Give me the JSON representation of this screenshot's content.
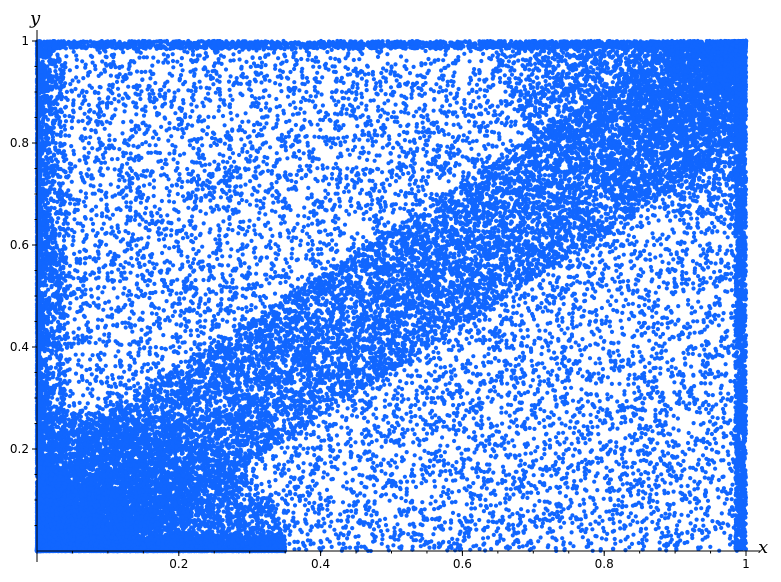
{
  "chart_data": {
    "type": "scatter",
    "title": "",
    "xlabel": "x",
    "ylabel": "y",
    "xlim": [
      0,
      1.0
    ],
    "ylim": [
      0,
      1.0
    ],
    "grid": false,
    "legend": "none",
    "x_ticks": [
      {
        "value": 0.2,
        "label": "0.2"
      },
      {
        "value": 0.4,
        "label": "0.4"
      },
      {
        "value": 0.6,
        "label": "0.6"
      },
      {
        "value": 0.8,
        "label": "0.8"
      },
      {
        "value": 1.0,
        "label": "1"
      }
    ],
    "y_ticks": [
      {
        "value": 0.2,
        "label": "0.2"
      },
      {
        "value": 0.4,
        "label": "0.4"
      },
      {
        "value": 0.6,
        "label": "0.6"
      },
      {
        "value": 0.8,
        "label": "0.8"
      },
      {
        "value": 1.0,
        "label": "1"
      }
    ],
    "series": [
      {
        "marker_color": "#1166ff",
        "description_of_distribution": "",
        "points": [
          [
            0.01,
            0.02
          ],
          [
            0.02,
            0.05
          ],
          [
            0.03,
            0.08
          ],
          [
            0.04,
            0.03
          ],
          [
            0.05,
            0.12
          ],
          [
            0.06,
            0.07
          ],
          [
            0.07,
            0.15
          ],
          [
            0.08,
            0.04
          ],
          [
            0.09,
            0.18
          ],
          [
            0.1,
            0.1
          ],
          [
            0.11,
            0.22
          ],
          [
            0.12,
            0.06
          ],
          [
            0.13,
            0.14
          ],
          [
            0.14,
            0.25
          ],
          [
            0.15,
            0.09
          ],
          [
            0.16,
            0.2
          ],
          [
            0.17,
            0.3
          ],
          [
            0.18,
            0.12
          ],
          [
            0.19,
            0.24
          ],
          [
            0.2,
            0.34
          ],
          [
            0.21,
            0.16
          ],
          [
            0.22,
            0.28
          ],
          [
            0.23,
            0.38
          ],
          [
            0.24,
            0.2
          ],
          [
            0.25,
            0.32
          ],
          [
            0.26,
            0.42
          ],
          [
            0.27,
            0.24
          ],
          [
            0.28,
            0.36
          ],
          [
            0.29,
            0.46
          ],
          [
            0.3,
            0.28
          ],
          [
            0.31,
            0.4
          ],
          [
            0.32,
            0.5
          ],
          [
            0.33,
            0.32
          ],
          [
            0.34,
            0.44
          ],
          [
            0.35,
            0.54
          ],
          [
            0.36,
            0.36
          ],
          [
            0.37,
            0.48
          ],
          [
            0.38,
            0.58
          ],
          [
            0.39,
            0.4
          ],
          [
            0.4,
            0.52
          ],
          [
            0.41,
            0.62
          ],
          [
            0.42,
            0.44
          ],
          [
            0.43,
            0.56
          ],
          [
            0.44,
            0.66
          ],
          [
            0.45,
            0.48
          ],
          [
            0.46,
            0.6
          ],
          [
            0.47,
            0.7
          ],
          [
            0.48,
            0.52
          ],
          [
            0.49,
            0.64
          ],
          [
            0.5,
            0.74
          ],
          [
            0.51,
            0.56
          ],
          [
            0.52,
            0.68
          ],
          [
            0.53,
            0.78
          ],
          [
            0.54,
            0.6
          ],
          [
            0.55,
            0.72
          ],
          [
            0.56,
            0.82
          ],
          [
            0.57,
            0.64
          ],
          [
            0.58,
            0.76
          ],
          [
            0.59,
            0.86
          ],
          [
            0.6,
            0.68
          ],
          [
            0.61,
            0.8
          ],
          [
            0.62,
            0.9
          ],
          [
            0.63,
            0.72
          ],
          [
            0.64,
            0.84
          ],
          [
            0.65,
            0.94
          ],
          [
            0.66,
            0.76
          ],
          [
            0.67,
            0.88
          ],
          [
            0.68,
            0.98
          ],
          [
            0.69,
            0.8
          ],
          [
            0.7,
            0.92
          ],
          [
            0.71,
            0.6
          ],
          [
            0.72,
            0.96
          ],
          [
            0.73,
            0.84
          ],
          [
            0.74,
            0.7
          ],
          [
            0.75,
            0.99
          ],
          [
            0.76,
            0.88
          ],
          [
            0.77,
            0.76
          ],
          [
            0.78,
            0.93
          ],
          [
            0.79,
            0.82
          ],
          [
            0.8,
            0.97
          ],
          [
            0.81,
            0.86
          ],
          [
            0.82,
            0.74
          ],
          [
            0.83,
            0.9
          ],
          [
            0.84,
            0.99
          ],
          [
            0.85,
            0.8
          ],
          [
            0.86,
            0.94
          ],
          [
            0.87,
            0.88
          ],
          [
            0.88,
            0.99
          ],
          [
            0.89,
            0.92
          ],
          [
            0.9,
            0.84
          ],
          [
            0.91,
            0.97
          ],
          [
            0.92,
            0.9
          ],
          [
            0.93,
            0.99
          ],
          [
            0.94,
            0.95
          ],
          [
            0.95,
            0.98
          ],
          [
            0.96,
            0.99
          ],
          [
            0.97,
            0.97
          ],
          [
            0.98,
            0.99
          ],
          [
            0.99,
            0.98
          ],
          [
            1.0,
            1.0
          ],
          [
            0.05,
            0.6
          ],
          [
            0.07,
            0.9
          ],
          [
            0.1,
            0.75
          ],
          [
            0.12,
            0.95
          ],
          [
            0.15,
            0.5
          ],
          [
            0.18,
            0.85
          ],
          [
            0.2,
            0.65
          ],
          [
            0.22,
            0.98
          ],
          [
            0.25,
            0.8
          ],
          [
            0.28,
            0.7
          ],
          [
            0.3,
            0.92
          ],
          [
            0.32,
            0.85
          ],
          [
            0.35,
            0.97
          ],
          [
            0.38,
            0.9
          ],
          [
            0.4,
            0.99
          ],
          [
            0.42,
            0.95
          ],
          [
            0.45,
            0.9
          ],
          [
            0.48,
            0.98
          ],
          [
            0.5,
            0.95
          ],
          [
            0.52,
            0.99
          ],
          [
            0.3,
            0.1
          ],
          [
            0.35,
            0.05
          ],
          [
            0.4,
            0.2
          ],
          [
            0.45,
            0.08
          ],
          [
            0.5,
            0.15
          ],
          [
            0.55,
            0.3
          ],
          [
            0.6,
            0.05
          ],
          [
            0.62,
            0.25
          ],
          [
            0.65,
            0.4
          ],
          [
            0.68,
            0.12
          ],
          [
            0.7,
            0.35
          ],
          [
            0.72,
            0.5
          ],
          [
            0.75,
            0.2
          ],
          [
            0.78,
            0.45
          ],
          [
            0.8,
            0.6
          ],
          [
            0.82,
            0.1
          ],
          [
            0.85,
            0.3
          ],
          [
            0.88,
            0.55
          ],
          [
            0.9,
            0.7
          ],
          [
            0.92,
            0.2
          ],
          [
            0.95,
            0.45
          ],
          [
            0.97,
            0.65
          ],
          [
            0.99,
            0.85
          ],
          [
            0.98,
            0.3
          ],
          [
            0.96,
            0.12
          ]
        ]
      }
    ]
  }
}
